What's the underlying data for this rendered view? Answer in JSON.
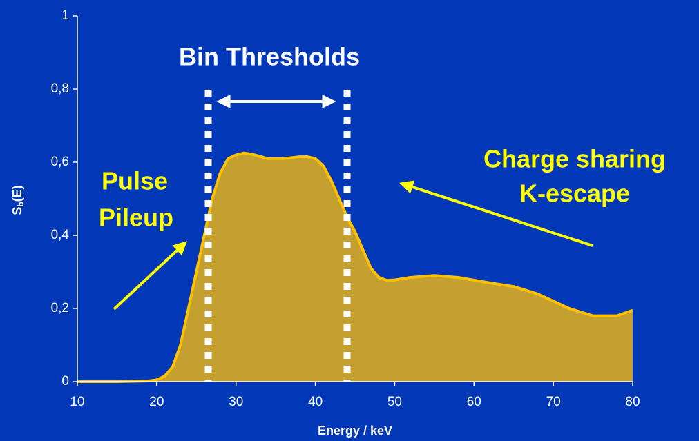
{
  "chart_data": {
    "type": "area",
    "x_label": "Energy / keV",
    "y_label": {
      "main": "S",
      "sub": "b",
      "tail": "(E)"
    },
    "annotations": {
      "bin_thresholds": "Bin Thresholds",
      "pulse_pileup": [
        "Pulse",
        "Pileup"
      ],
      "charge_sharing": [
        "Charge sharing",
        "K-escape"
      ]
    },
    "thresholds": [
      26.5,
      44
    ],
    "x": [
      10,
      15,
      19,
      20,
      21,
      22,
      23,
      24,
      25,
      26,
      27,
      28,
      29,
      30,
      31,
      32,
      34,
      36,
      38,
      39,
      40,
      41,
      42,
      43,
      44,
      45,
      46,
      47,
      48,
      49,
      50,
      52,
      55,
      58,
      62,
      65,
      68,
      72,
      75,
      78,
      80
    ],
    "series": [
      {
        "color": "#ffc000",
        "fill": "#c4a030",
        "values": [
          0,
          0,
          0.002,
          0.005,
          0.015,
          0.04,
          0.1,
          0.2,
          0.3,
          0.4,
          0.5,
          0.57,
          0.61,
          0.62,
          0.625,
          0.622,
          0.61,
          0.61,
          0.615,
          0.615,
          0.61,
          0.59,
          0.55,
          0.5,
          0.45,
          0.41,
          0.36,
          0.31,
          0.285,
          0.277,
          0.278,
          0.285,
          0.29,
          0.285,
          0.27,
          0.26,
          0.24,
          0.2,
          0.18,
          0.18,
          0.195
        ]
      }
    ],
    "xlim": [
      10,
      80
    ],
    "ylim": [
      0,
      1
    ],
    "xticks": [
      10,
      20,
      30,
      40,
      50,
      60,
      70,
      80
    ],
    "yticks": [
      0,
      {
        "value": 0.2,
        "label": "0,2"
      },
      {
        "value": 0.4,
        "label": "0,4"
      },
      {
        "value": 0.6,
        "label": "0,6"
      },
      {
        "value": 0.8,
        "label": "0,8"
      },
      1
    ]
  }
}
